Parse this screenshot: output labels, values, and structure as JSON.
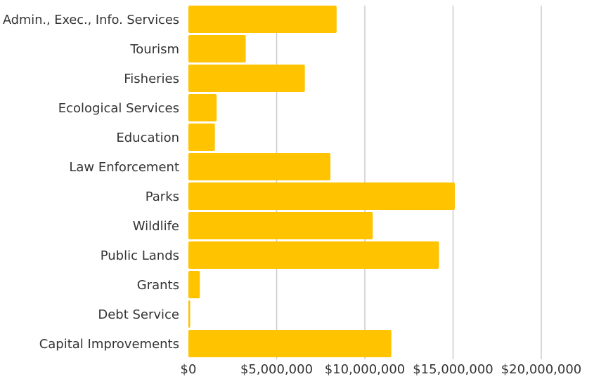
{
  "chart_data": {
    "type": "bar",
    "orientation": "horizontal",
    "title": "",
    "xlabel": "",
    "ylabel": "",
    "categories": [
      "Admin., Exec., Info. Services",
      "Tourism",
      "Fisheries",
      "Ecological Services",
      "Education",
      "Law Enforcement",
      "Parks",
      "Wildlife",
      "Public Lands",
      "Grants",
      "Debt Service",
      "Capital Improvements"
    ],
    "values": [
      8400000,
      3250000,
      6600000,
      1600000,
      1500000,
      8050000,
      15100000,
      10450000,
      14200000,
      650000,
      100000,
      11500000
    ],
    "xlim": [
      0,
      20000000
    ],
    "x_ticks": [
      0,
      5000000,
      10000000,
      15000000,
      20000000
    ],
    "x_tick_labels": [
      "$0",
      "$5,000,000",
      "$10,000,000",
      "$15,000,000",
      "$20,000,000"
    ],
    "grid": "vertical",
    "legend": "none",
    "bar_color": "#FFC300",
    "grid_color": "#cccccc"
  }
}
